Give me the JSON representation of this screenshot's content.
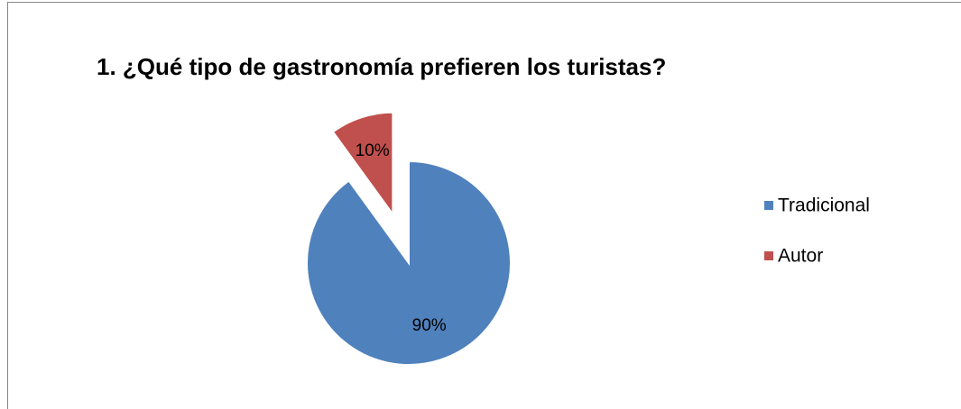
{
  "chart_data": {
    "type": "pie",
    "title": "1. ¿Qué tipo de gastronomía prefieren los turistas?",
    "categories": [
      "Tradicional",
      "Autor"
    ],
    "values": [
      90,
      10
    ],
    "value_labels": [
      "90%",
      "10%"
    ],
    "colors": [
      "#4f81bd",
      "#c0504d"
    ],
    "explode": [
      false,
      true
    ],
    "legend": "right"
  }
}
